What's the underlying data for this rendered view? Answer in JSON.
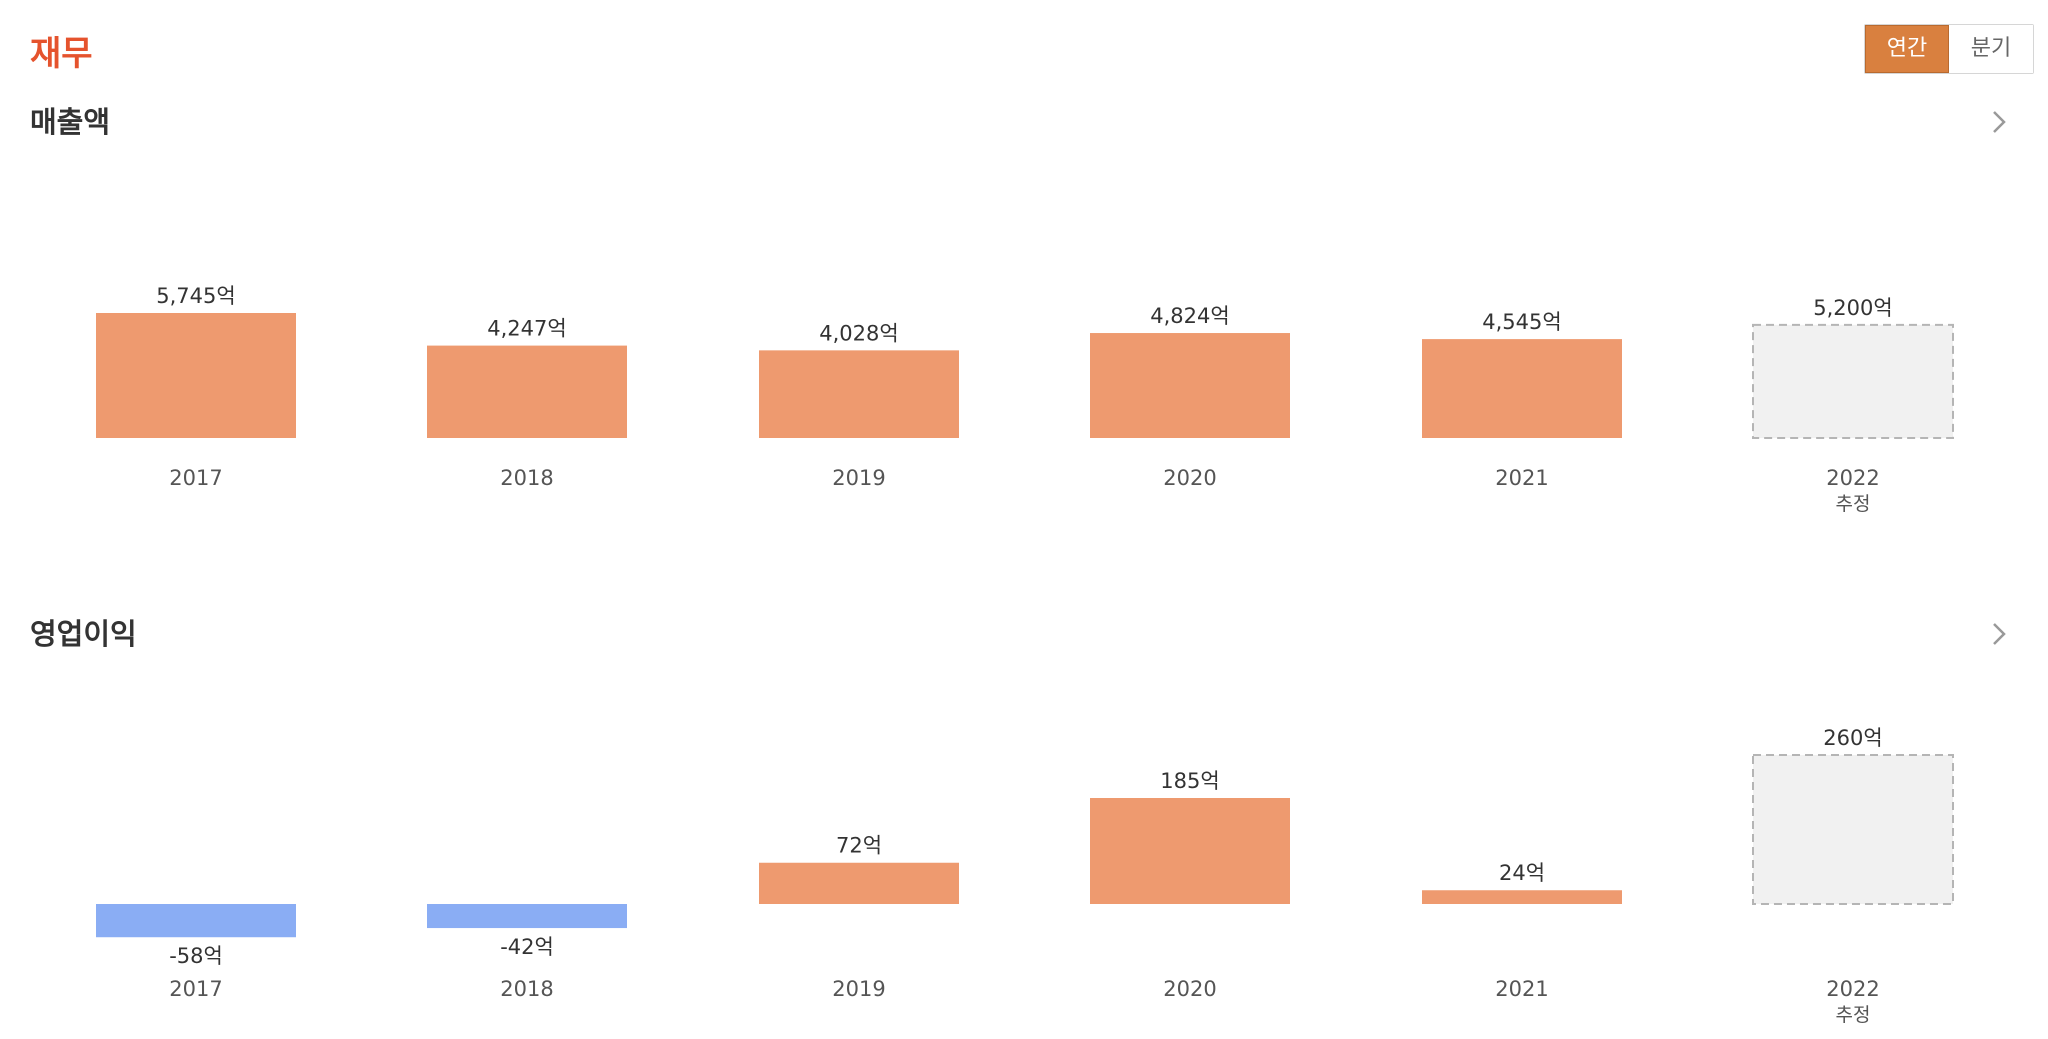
{
  "header": {
    "title": "재무",
    "toggle": {
      "annual_label": "연간",
      "quarter_label": "분기",
      "selected": "annual"
    }
  },
  "colors": {
    "title": "#e5532d",
    "positive_bar": "#ee9a6f",
    "negative_bar": "#8aadf4",
    "estimate_fill": "#f1f1f1",
    "estimate_border": "#b5b5b5",
    "accent": "#d9803f"
  },
  "icons": {
    "more": "chevron-right-icon"
  },
  "estimate_label": "추정",
  "chart_data": [
    {
      "type": "bar",
      "title": "매출액",
      "unit": "억",
      "categories": [
        "2017",
        "2018",
        "2019",
        "2020",
        "2021",
        "2022"
      ],
      "values": [
        5745,
        4247,
        4028,
        4824,
        4545,
        5200
      ],
      "value_labels": [
        "5,745억",
        "4,247억",
        "4,028억",
        "4,824억",
        "4,545억",
        "5,200억"
      ],
      "estimate": [
        false,
        false,
        false,
        false,
        false,
        true
      ],
      "ylim": [
        0,
        6500
      ],
      "grid": false,
      "legend": false
    },
    {
      "type": "bar",
      "title": "영업이익",
      "unit": "억",
      "categories": [
        "2017",
        "2018",
        "2019",
        "2020",
        "2021",
        "2022"
      ],
      "values": [
        -58,
        -42,
        72,
        185,
        24,
        260
      ],
      "value_labels": [
        "-58억",
        "-42억",
        "72억",
        "185억",
        "24억",
        "260억"
      ],
      "estimate": [
        false,
        false,
        false,
        false,
        false,
        true
      ],
      "ylim": [
        -60,
        320
      ],
      "grid": false,
      "legend": false
    }
  ]
}
